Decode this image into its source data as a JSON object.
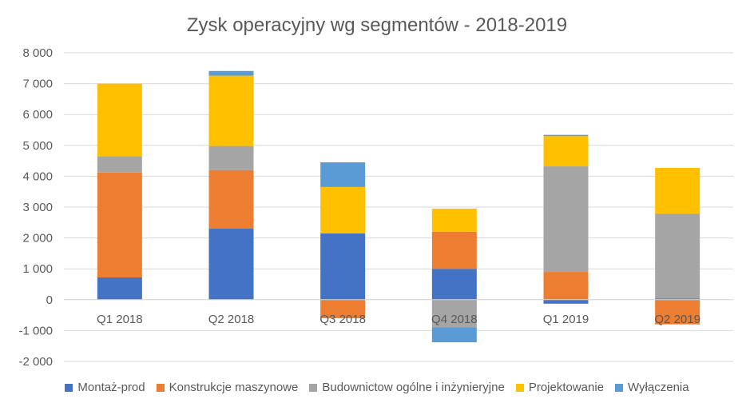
{
  "chart_data": {
    "type": "bar",
    "stacked": true,
    "title": "Zysk operacyjny wg segmentów - 2018-2019",
    "categories": [
      "Q1 2018",
      "Q2 2018",
      "Q3 2018",
      "Q4 2018",
      "Q1 2019",
      "Q2 2019"
    ],
    "ylim": [
      -2000,
      8000
    ],
    "yticks": [
      8000,
      7000,
      6000,
      5000,
      4000,
      3000,
      2000,
      1000,
      0,
      -1000,
      -2000
    ],
    "ytick_labels": [
      "8 000",
      "7 000",
      "6 000",
      "5 000",
      "4 000",
      "3 000",
      "2 000",
      "1 000",
      "0",
      "-1 000",
      "-2 000"
    ],
    "grid": true,
    "legend_position": "bottom",
    "series": [
      {
        "name": "Montaż-prod",
        "color": "#4472C4",
        "values": [
          720,
          2300,
          2150,
          1000,
          -130,
          40
        ]
      },
      {
        "name": "Konstrukcje maszynowe",
        "color": "#ED7D31",
        "values": [
          3400,
          1900,
          -600,
          1200,
          900,
          -800
        ]
      },
      {
        "name": "Budownictow ogólne i inżynieryjne",
        "color": "#A5A5A5",
        "values": [
          530,
          780,
          0,
          -900,
          3420,
          2740
        ]
      },
      {
        "name": "Projektowanie",
        "color": "#FFC000",
        "values": [
          2350,
          2280,
          1500,
          750,
          980,
          1490
        ]
      },
      {
        "name": "Wyłączenia",
        "color": "#5B9BD5",
        "values": [
          0,
          150,
          800,
          -480,
          40,
          0
        ]
      }
    ]
  }
}
